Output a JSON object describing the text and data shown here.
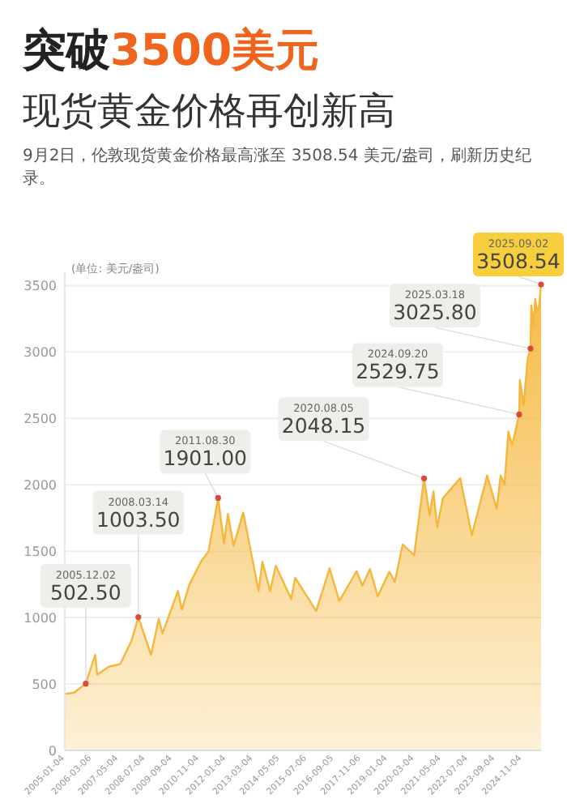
{
  "chart_data": {
    "type": "area",
    "title": "突破3500美元",
    "subtitle": "现货黄金价格再创新高",
    "ylabel": "(单位: 美元/盎司)",
    "annotations": [
      "9月2日，伦敦现货黄金价格最高涨至 3508.54 美元/盎司，刷新历史纪录。",
      {
        "text": "2005.12.02\n502.50",
        "x": "2005-12-02",
        "y": 502.5
      },
      {
        "text": "2008.03.14\n1003.50",
        "x": "2008-03-14",
        "y": 1003.5
      },
      {
        "text": "2011.08.30\n1901.00",
        "x": "2011-08-30",
        "y": 1901.0
      },
      {
        "text": "2020.08.05\n2048.15",
        "x": "2020-08-05",
        "y": 2048.15
      },
      {
        "text": "2024.09.20\n2529.75",
        "x": "2024-09-20",
        "y": 2529.75
      },
      {
        "text": "2025.03.18\n3025.80",
        "x": "2025-03-18",
        "y": 3025.8
      },
      {
        "text": "2025.09.02\n3508.54",
        "x": "2025-09-02",
        "y": 3508.54
      }
    ],
    "series": [
      {
        "color": "#f5b73b",
        "x": [
          "2005-01-04",
          "2005-06",
          "2005-12-02",
          "2006-05",
          "2006-06",
          "2006-12",
          "2007-06",
          "2007-12",
          "2008-03-14",
          "2008-10",
          "2009-02",
          "2009-04",
          "2009-12",
          "2010-02",
          "2010-06",
          "2010-12",
          "2011-04",
          "2011-08-30",
          "2011-12",
          "2012-02",
          "2012-05",
          "2012-10",
          "2013-04",
          "2013-06",
          "2013-08",
          "2013-12",
          "2014-03",
          "2014-11",
          "2015-01",
          "2015-12",
          "2016-07",
          "2016-12",
          "2017-09",
          "2017-12",
          "2018-04",
          "2018-08",
          "2019-02",
          "2019-05",
          "2019-09",
          "2020-03",
          "2020-08-05",
          "2020-11",
          "2021-01",
          "2021-03",
          "2021-06",
          "2022-03",
          "2022-09",
          "2023-05",
          "2023-10",
          "2023-12",
          "2024-02",
          "2024-04",
          "2024-06",
          "2024-09-20",
          "2024-10",
          "2024-12",
          "2025-02",
          "2025-03-18",
          "2025-04",
          "2025-05",
          "2025-06",
          "2025-07",
          "2025-08",
          "2025-09-02"
        ],
        "values": [
          425,
          435,
          502.5,
          720,
          570,
          630,
          650,
          830,
          1003.5,
          720,
          990,
          880,
          1200,
          1060,
          1250,
          1420,
          1500,
          1901,
          1560,
          1780,
          1540,
          1790,
          1350,
          1200,
          1420,
          1200,
          1390,
          1140,
          1300,
          1050,
          1370,
          1125,
          1350,
          1240,
          1365,
          1160,
          1345,
          1270,
          1550,
          1470,
          2048.15,
          1770,
          1950,
          1680,
          1900,
          2050,
          1620,
          2070,
          1820,
          2070,
          2000,
          2400,
          2300,
          2529.75,
          2790,
          2600,
          2950,
          3025.8,
          3350,
          3200,
          3400,
          3300,
          3350,
          3508.54
        ]
      }
    ],
    "xlim": [
      "2005-01-04",
      "2025-09-02"
    ],
    "xticks": [
      "2005-01-04",
      "2006-03-06",
      "2007-05-04",
      "2008-07-04",
      "2009-09-04",
      "2010-11-04",
      "2012-01-04",
      "2013-03-04",
      "2014-05-05",
      "2015-07-06",
      "2016-09-05",
      "2017-11-06",
      "2019-01-04",
      "2020-03-04",
      "2021-05-04",
      "2022-07-04",
      "2023-09-04",
      "2024-11-04"
    ],
    "ylim": [
      0,
      3600
    ],
    "yticks": [
      0,
      500,
      1000,
      1500,
      2000,
      2500,
      3000,
      3500
    ],
    "grid": "y",
    "marker": "none",
    "line_style": "solid"
  }
}
